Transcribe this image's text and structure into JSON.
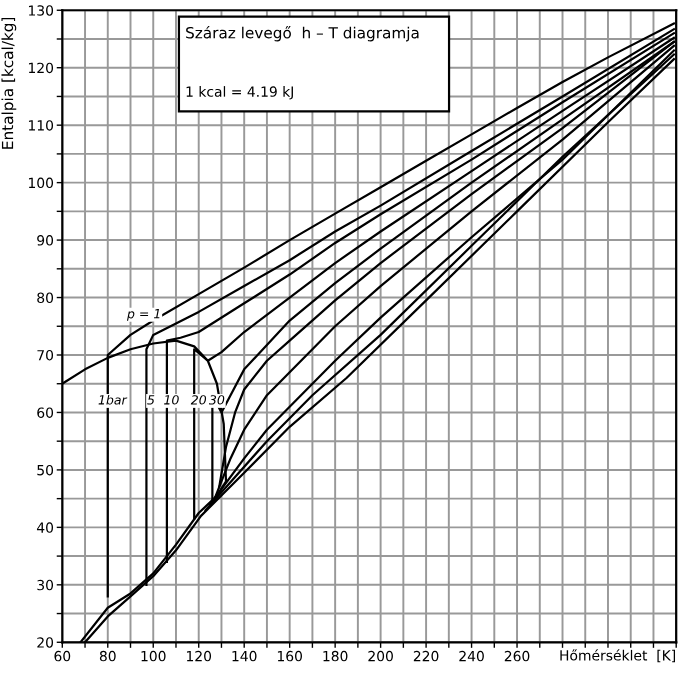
{
  "chart_data": {
    "type": "line",
    "title": "Száraz levegő  h – T diagramja",
    "xlabel": "Hőmérséklet  [K]",
    "ylabel": "Entalpia [kcal/kg]",
    "annotations": [
      "1 kcal = 4.19 kJ",
      {
        "text": "p = 1",
        "x": 96,
        "y": 77
      },
      {
        "text": "1bar",
        "x": 82,
        "y": 62
      },
      {
        "text": "5",
        "x": 99,
        "y": 62
      },
      {
        "text": "10",
        "x": 108,
        "y": 62
      },
      {
        "text": "20",
        "x": 120,
        "y": 62
      },
      {
        "text": "30",
        "x": 128,
        "y": 62
      }
    ],
    "xlim": [
      60,
      330
    ],
    "ylim": [
      20,
      130
    ],
    "xticks": [
      60,
      {
        "value": 70,
        "label": null
      },
      80,
      {
        "value": 90,
        "label": null
      },
      100,
      {
        "value": 110,
        "label": null
      },
      120,
      {
        "value": 130,
        "label": null
      },
      140,
      {
        "value": 150,
        "label": null
      },
      160,
      {
        "value": 170,
        "label": null
      },
      180,
      {
        "value": 190,
        "label": null
      },
      200,
      {
        "value": 210,
        "label": null
      },
      220,
      {
        "value": 230,
        "label": null
      },
      240,
      {
        "value": 250,
        "label": null
      },
      260,
      {
        "value": 270,
        "label": null
      },
      {
        "value": 280,
        "label": null
      },
      {
        "value": 290,
        "label": null
      },
      {
        "value": 300,
        "label": null
      },
      {
        "value": 310,
        "label": null
      },
      {
        "value": 320,
        "label": null
      },
      {
        "value": 330,
        "label": null
      }
    ],
    "yticks": [
      20,
      {
        "value": 25,
        "label": null
      },
      30,
      {
        "value": 35,
        "label": null
      },
      40,
      {
        "value": 45,
        "label": null
      },
      50,
      {
        "value": 55,
        "label": null
      },
      60,
      {
        "value": 65,
        "label": null
      },
      70,
      {
        "value": 75,
        "label": null
      },
      80,
      {
        "value": 85,
        "label": null
      },
      90,
      {
        "value": 95,
        "label": null
      },
      100,
      {
        "value": 105,
        "label": null
      },
      110,
      {
        "value": 115,
        "label": null
      },
      120,
      {
        "value": 125,
        "label": null
      },
      130
    ],
    "grid": true,
    "legend": false,
    "marker": "none",
    "line_style": "solid",
    "series": [
      {
        "color": "#000000",
        "x": [
          60,
          70,
          80,
          90,
          100,
          110,
          118,
          124,
          128,
          131,
          132,
          128,
          120,
          110,
          100,
          90,
          80,
          68
        ],
        "values": [
          65,
          67.5,
          69.5,
          71,
          72,
          72.5,
          71.5,
          69,
          65,
          58,
          48,
          45.5,
          42.5,
          37,
          32,
          28.5,
          26,
          20
        ]
      },
      {
        "color": "#000000",
        "x": [
          80,
          80,
          90,
          100,
          120,
          140,
          160,
          180,
          200,
          220,
          240,
          260,
          280,
          300,
          329
        ],
        "values": [
          28,
          70,
          73.5,
          76,
          80.6,
          85.2,
          90,
          94.6,
          99.2,
          103.8,
          108.4,
          113,
          117.5,
          121.8,
          127.7
        ]
      },
      {
        "color": "#000000",
        "x": [
          97,
          97,
          100,
          110,
          120,
          140,
          160,
          180,
          200,
          240,
          280,
          329
        ],
        "values": [
          30,
          71,
          73.5,
          75.5,
          77.5,
          82,
          86.5,
          91.5,
          96,
          105.5,
          115,
          126.7
        ]
      },
      {
        "color": "#000000",
        "x": [
          106,
          106,
          112,
          120,
          140,
          160,
          180,
          200,
          240,
          280,
          329
        ],
        "values": [
          34,
          72.5,
          73,
          74,
          79,
          84,
          89.5,
          94.5,
          104,
          114,
          126
        ]
      },
      {
        "color": "#000000",
        "x": [
          118,
          118,
          124,
          130,
          140,
          160,
          180,
          200,
          240,
          280,
          329
        ],
        "values": [
          41.5,
          71,
          69,
          70.5,
          74,
          80,
          86,
          91.5,
          102,
          112.5,
          125.2
        ]
      },
      {
        "color": "#000000",
        "x": [
          126,
          126,
          130,
          134,
          140,
          160,
          180,
          200,
          240,
          280,
          329
        ],
        "values": [
          44.5,
          63,
          60,
          63,
          67.5,
          76,
          82.5,
          88.5,
          100,
          111,
          124.5
        ]
      },
      {
        "color": "#000000",
        "x": [
          129,
          132,
          136,
          140,
          150,
          160,
          180,
          200,
          240,
          280,
          329
        ],
        "values": [
          47,
          54,
          60,
          64,
          69,
          72.5,
          79.5,
          86,
          98,
          109.5,
          124.5
        ]
      },
      {
        "color": "#000000",
        "x": [
          127,
          134,
          140,
          150,
          160,
          180,
          200,
          240,
          280,
          329
        ],
        "values": [
          45,
          52,
          57,
          63,
          67,
          75,
          82,
          95,
          107.5,
          123.8
        ]
      },
      {
        "color": "#000000",
        "x": [
          125,
          140,
          150,
          160,
          180,
          200,
          240,
          280,
          329
        ],
        "values": [
          44,
          52,
          57,
          61,
          69,
          76.5,
          90.5,
          104,
          123
        ]
      },
      {
        "color": "#000000",
        "x": [
          123,
          150,
          170,
          200,
          240,
          280,
          329
        ],
        "values": [
          43,
          55,
          63,
          73.5,
          89,
          104.5,
          122.3
        ]
      },
      {
        "color": "#000000",
        "x": [
          70,
          80,
          90,
          100,
          110,
          121,
          140,
          160,
          185,
          220,
          260,
          300,
          329
        ],
        "values": [
          20,
          24.5,
          28,
          31.5,
          36,
          42,
          49.5,
          57.5,
          66,
          79.5,
          95,
          110.5,
          121.5
        ]
      }
    ]
  }
}
